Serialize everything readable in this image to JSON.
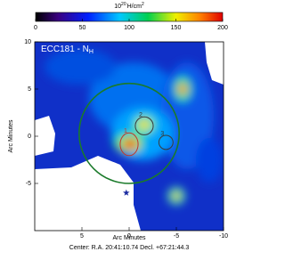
{
  "chart_data": {
    "type": "image",
    "title": "ECC181 - N",
    "title_subscript": "H",
    "colorbar": {
      "label_base": "10",
      "label_exp": "20",
      "label_unit": "H/cm",
      "label_unit_exp": "2",
      "lim": [
        0,
        200
      ],
      "ticks": [
        0,
        50,
        100,
        150,
        200
      ]
    },
    "xlabel": "Arc Minutes",
    "ylabel": "Arc Minutes",
    "footer": "Center: R.A. 20:41:10.74  Decl. +67:21:44.3",
    "xlim": [
      10,
      -10
    ],
    "ylim": [
      -10,
      10
    ],
    "xticks": [
      5,
      0,
      -5,
      -10
    ],
    "yticks": [
      10,
      5,
      0,
      -5
    ],
    "regions": [
      {
        "label": "1",
        "x": 0,
        "y": -0.85,
        "rx": 0.95,
        "ry": 1.2,
        "color": "#c0392b"
      },
      {
        "label": "2",
        "x": -1.6,
        "y": 1.1,
        "rx": 0.95,
        "ry": 0.95,
        "color": "#3a3a3a"
      },
      {
        "label": "3",
        "x": -3.9,
        "y": -0.65,
        "rx": 0.75,
        "ry": 0.75,
        "color": "#3a3a3a"
      }
    ],
    "big_circle": {
      "x": 0,
      "y": 0.3,
      "r": 5.3,
      "color": "#1a7a2a"
    },
    "star": {
      "x": 0.3,
      "y": -6,
      "color": "#1a2aa0"
    }
  }
}
